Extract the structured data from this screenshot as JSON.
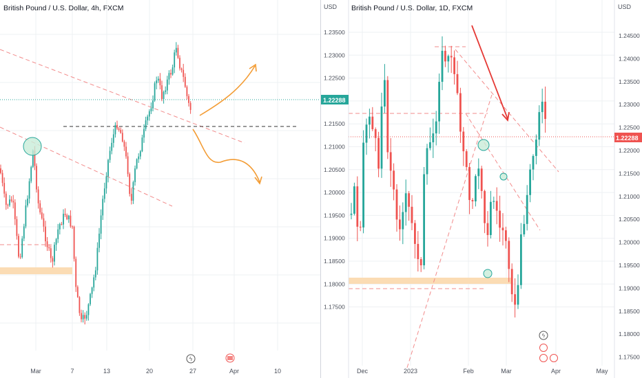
{
  "colors": {
    "up": "#26a69a",
    "down": "#ef5350",
    "grid": "#eef0f3",
    "trendline": "#f28b8b",
    "support_zone": "#fbdcb4",
    "arrow_orange": "#f39c34",
    "arrow_red": "#e53935",
    "price_tag": "#26a69a",
    "price_tag_red": "#ef5350",
    "circle_fill": "#c8ecd8",
    "circle_stroke": "#26a69a",
    "axis_text": "#4a4f5a"
  },
  "left_panel": {
    "title": "British Pound / U.S. Dollar, 4h, FXCM",
    "price_axis_label": "USD",
    "current_price": "1.22288",
    "event_icons": [
      "lightning-icon",
      "us-flag-icon"
    ]
  },
  "right_panel": {
    "title": "British Pound / U.S. Dollar, 1D, FXCM",
    "price_axis_label": "USD",
    "current_price": "1.22288",
    "event_icons": [
      "lightning-icon",
      "us-flag-icon",
      "us-flag-icon",
      "us-flag-icon",
      "us-flag-icon"
    ]
  },
  "chart_data": [
    {
      "type": "candlestick",
      "title": "British Pound / U.S. Dollar, 4h, FXCM",
      "ylabel": "USD",
      "x_ticks": [
        "Mar",
        "7",
        "13",
        "20",
        "27",
        "Apr",
        "10"
      ],
      "ylim": [
        1.1785,
        1.2465
      ],
      "y_ticks": [],
      "last_price": 1.22288,
      "annotations": {
        "horizontal_dashed_level": 1.2175,
        "support_zone": [
          1.1935,
          1.195
        ],
        "scenario_up_arrow": "orange arrow pointing up",
        "scenario_down_arrow": "orange arrow pointing down"
      }
    },
    {
      "type": "candlestick",
      "title": "British Pound / U.S. Dollar, 1D, FXCM",
      "ylabel": "USD",
      "x_ticks": [
        "Dec",
        "2023",
        "Feb",
        "Mar",
        "Apr",
        "May"
      ],
      "ylim": [
        1.173,
        1.252
      ],
      "y_ticks": [
        "1.23500",
        "1.23000",
        "1.22500",
        "1.22000",
        "1.21500",
        "1.21000",
        "1.20500",
        "1.20000",
        "1.19500",
        "1.19000",
        "1.18500",
        "1.18000",
        "1.17500"
      ],
      "y_ticks_right": [
        "1.24500",
        "1.24000",
        "1.23500",
        "1.23000",
        "1.22500",
        "1.22000",
        "1.21500",
        "1.21000",
        "1.20500",
        "1.20000",
        "1.19500",
        "1.19000",
        "1.18500",
        "1.18000",
        "1.17500"
      ],
      "last_price": 1.22288,
      "annotations": {
        "support_zone": [
          1.1905,
          1.192
        ],
        "resistance_level_dashed": 1.221,
        "bottom_level_dashed": 1.1897,
        "trend_arrow": "red arrow pointing down"
      }
    }
  ]
}
